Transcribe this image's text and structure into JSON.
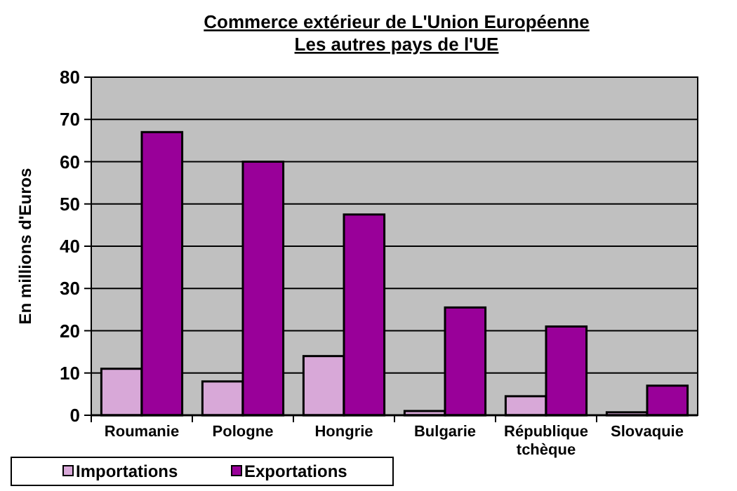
{
  "chart_data": {
    "type": "bar",
    "title": "Commerce extérieur de L'Union Européenne",
    "subtitle": "Les autres pays de l'UE",
    "ylabel": "En millions d'Euros",
    "categories": [
      "Roumanie",
      "Pologne",
      "Hongrie",
      "Bulgarie",
      "République tchèque",
      "Slovaquie"
    ],
    "series": [
      {
        "name": "Importations",
        "color": "#d8a8d8",
        "values": [
          11,
          8,
          14,
          1,
          4.5,
          0.7
        ]
      },
      {
        "name": "Exportations",
        "color": "#990099",
        "values": [
          67,
          60,
          47.5,
          25.5,
          21,
          7
        ]
      }
    ],
    "ylim": [
      0,
      80
    ],
    "yticks": [
      0,
      10,
      20,
      30,
      40,
      50,
      60,
      70,
      80
    ],
    "grid": "y",
    "legend": "bottom left"
  }
}
